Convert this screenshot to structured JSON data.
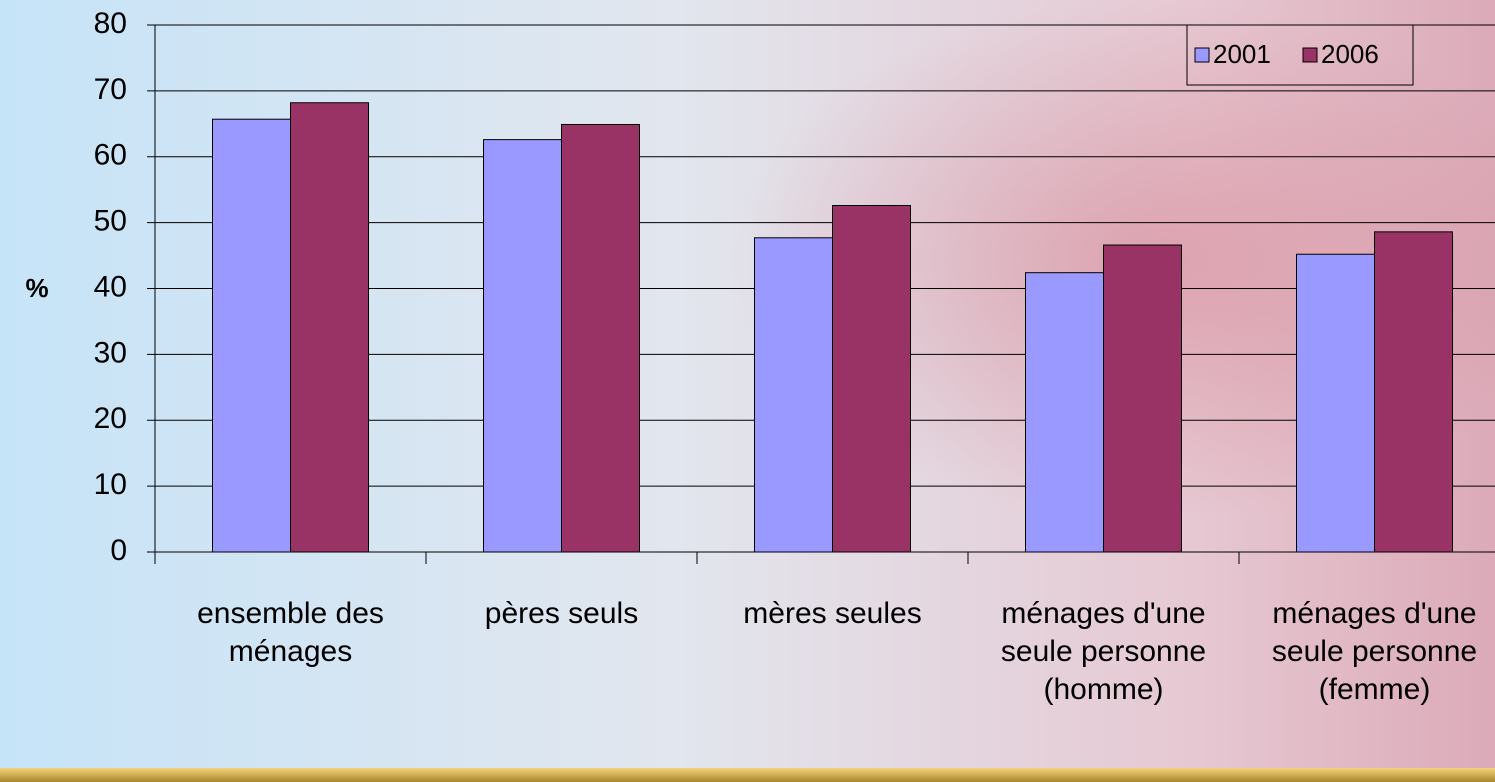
{
  "chart_data": {
    "type": "bar",
    "y_label": "%",
    "categories": [
      "ensemble des ménages",
      "pères seuls",
      "mères seules",
      "ménages d'une seule personne (homme)",
      "ménages d'une seule personne (femme)"
    ],
    "series": [
      {
        "name": "2001",
        "color": "#9999ff",
        "values": [
          65.7,
          62.6,
          47.7,
          42.4,
          45.2
        ]
      },
      {
        "name": "2006",
        "color": "#993366",
        "values": [
          68.2,
          64.9,
          52.6,
          46.6,
          48.6
        ]
      }
    ],
    "ylim": [
      0,
      80
    ],
    "yticks": [
      0,
      10,
      20,
      30,
      40,
      50,
      60,
      70,
      80
    ],
    "grid": true,
    "legend": "top-right"
  }
}
